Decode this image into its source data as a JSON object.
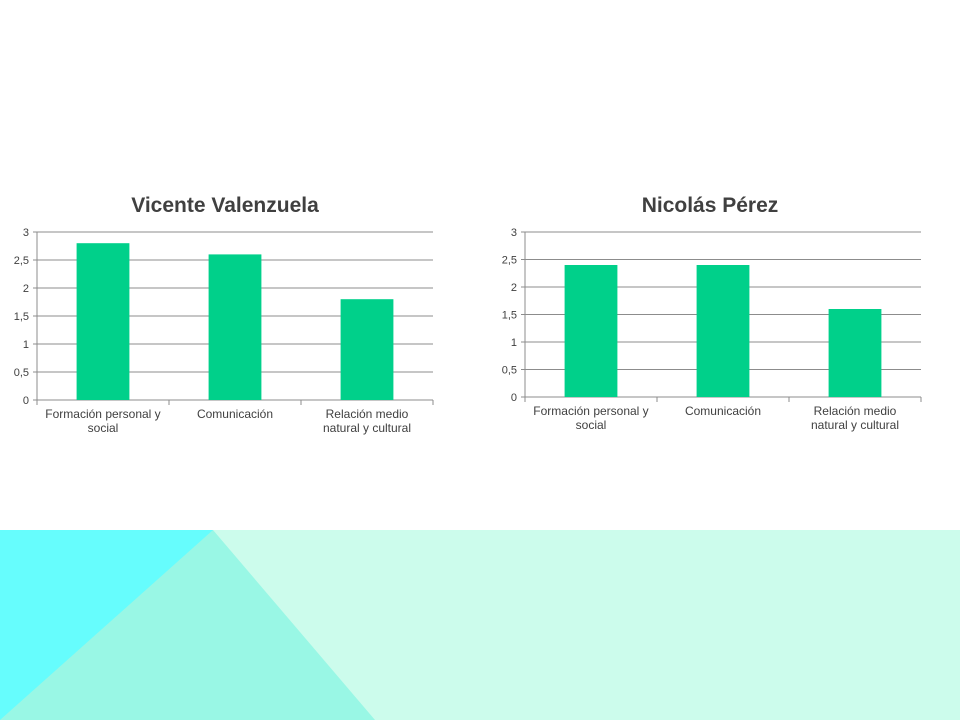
{
  "colors": {
    "bar": "#00D08A",
    "background": "#ffffff",
    "band_light": "#CCFCEC",
    "band_mid": "#99F7E5",
    "band_cyan": "#66FDFD"
  },
  "chart_data": [
    {
      "type": "bar",
      "title": "Vicente Valenzuela",
      "categories": [
        [
          "Formación personal y",
          "social"
        ],
        [
          "Comunicación"
        ],
        [
          "Relación medio",
          "natural y cultural"
        ]
      ],
      "values": [
        2.8,
        2.6,
        1.8
      ],
      "yticks": [
        "0",
        "0,5",
        "1",
        "1,5",
        "2",
        "2,5",
        "3"
      ],
      "ylim": [
        0,
        3
      ],
      "grid": true,
      "legend": "none"
    },
    {
      "type": "bar",
      "title": "Nicolás Pérez",
      "categories": [
        [
          "Formación personal y",
          "social"
        ],
        [
          "Comunicación"
        ],
        [
          "Relación medio",
          "natural y cultural"
        ]
      ],
      "values": [
        2.4,
        2.4,
        1.6
      ],
      "yticks": [
        "0",
        "0,5",
        "1",
        "1,5",
        "2",
        "2,5",
        "3"
      ],
      "ylim": [
        0,
        3
      ],
      "grid": true,
      "legend": "none"
    }
  ]
}
